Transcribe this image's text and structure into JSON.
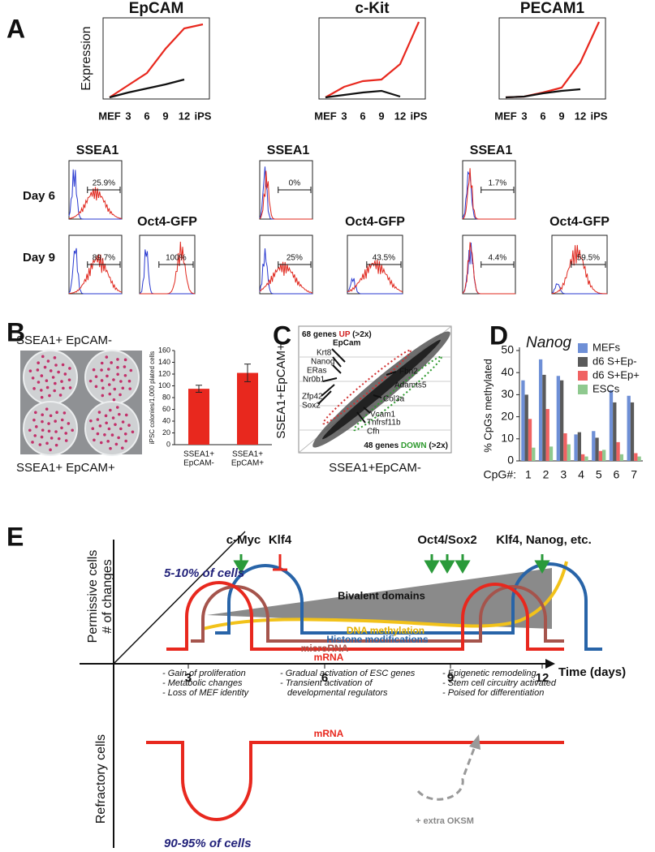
{
  "panel_labels": [
    "A",
    "B",
    "C",
    "D",
    "E"
  ],
  "chart_data": [
    {
      "type": "line",
      "title": "EpCAM",
      "y_label": "Expression",
      "categories": [
        "MEF",
        "3",
        "6",
        "9",
        "12",
        "iPS"
      ],
      "ylim": [
        0,
        100
      ],
      "series": [
        {
          "color": "#e8281e",
          "values": [
            2,
            17,
            32,
            62,
            87,
            92
          ]
        },
        {
          "color": "#111111",
          "values": [
            2,
            8,
            13,
            18,
            24,
            null
          ]
        }
      ]
    },
    {
      "type": "line",
      "title": "c-Kit",
      "categories": [
        "MEF",
        "3",
        "6",
        "9",
        "12",
        "iPS"
      ],
      "ylim": [
        0,
        100
      ],
      "series": [
        {
          "color": "#e8281e",
          "values": [
            2,
            15,
            22,
            24,
            43,
            95
          ]
        },
        {
          "color": "#111111",
          "values": [
            2,
            5,
            8,
            10,
            3,
            null
          ]
        }
      ]
    },
    {
      "type": "line",
      "title": "PECAM1",
      "categories": [
        "MEF",
        "3",
        "6",
        "9",
        "12",
        "iPS"
      ],
      "ylim": [
        0,
        100
      ],
      "series": [
        {
          "color": "#e8281e",
          "values": [
            2,
            3,
            8,
            14,
            45,
            95
          ]
        },
        {
          "color": "#111111",
          "values": [
            2,
            3,
            7,
            10,
            12,
            null
          ]
        }
      ]
    },
    {
      "type": "bar",
      "y_label": "iPSC colonies/1,000 plated cells",
      "categories": [
        [
          "SSEA1+",
          "EpCAM-"
        ],
        [
          "SSEA1+",
          "EpCAM+"
        ]
      ],
      "values": [
        95,
        122
      ],
      "errors": [
        6,
        15
      ],
      "color": "#e8281e",
      "ylim": [
        0,
        160
      ],
      "yticks": [
        0,
        20,
        40,
        60,
        80,
        100,
        120,
        140,
        160
      ]
    },
    {
      "type": "grouped_bar",
      "title": "Nanog",
      "y_label": "% CpGs methylated",
      "x_label": "CpG#:",
      "categories": [
        "1",
        "2",
        "3",
        "4",
        "5",
        "6",
        "7"
      ],
      "ylim": [
        0,
        50
      ],
      "yticks": [
        0,
        10,
        20,
        30,
        40,
        50
      ],
      "series": [
        {
          "name": "MEFs",
          "color": "#6e8fd6",
          "values": [
            36.5,
            46,
            38.5,
            12,
            13.5,
            32,
            29.5
          ]
        },
        {
          "name": "d6 S+Ep-",
          "color": "#5a5a5a",
          "values": [
            30,
            39,
            36.5,
            13,
            10.5,
            26.5,
            26.5
          ]
        },
        {
          "name": "d6 S+Ep+",
          "color": "#f06262",
          "values": [
            19,
            23.5,
            12.5,
            3,
            4.5,
            8.5,
            3.5
          ]
        },
        {
          "name": "ESCs",
          "color": "#8fc98f",
          "values": [
            6,
            6.5,
            7.5,
            2,
            5,
            3,
            2
          ]
        }
      ]
    }
  ],
  "flow": {
    "days": [
      "Day 6",
      "Day 9"
    ],
    "groups": [
      {
        "ssea1_title": "SSEA1",
        "day6_gate": "25.9%",
        "day9_gate": "89.7%",
        "oct4_title": "Oct4-GFP",
        "oct4_gate": "100%"
      },
      {
        "ssea1_title": "SSEA1",
        "day6_gate": "0%",
        "day9_gate": "25%",
        "oct4_title": "Oct4-GFP",
        "oct4_gate": "43.5%"
      },
      {
        "ssea1_title": "SSEA1",
        "day6_gate": "1.7%",
        "day9_gate": "4.4%",
        "oct4_title": "Oct4-GFP",
        "oct4_gate": "59.5%"
      }
    ]
  },
  "panel_b": {
    "photo_top": "SSEA1+ EpCAM-",
    "photo_bottom": "SSEA1+ EpCAM+"
  },
  "panel_c": {
    "up": {
      "count": "68 genes",
      "direction": "UP",
      "threshold": "(>2x)"
    },
    "down": {
      "count": "48 genes",
      "direction": "DOWN",
      "threshold": "(>2x)"
    },
    "y_label": "SSEA1+EpCAM+",
    "x_label": "SSEA1+EpCAM-",
    "up_genes": [
      "EpCam",
      "Krt8",
      "Nanog",
      "ERas",
      "Nr0b1",
      "Zfp42",
      "Sox2"
    ],
    "down_genes": [
      "Fbn2",
      "Adamts5",
      "Col3a",
      "Vcam1",
      "Tnfrsf11b",
      "Cfh"
    ]
  },
  "panel_e": {
    "factors": {
      "c_myc": "c-Myc",
      "klf4": "Klf4",
      "oct4_sox2": "Oct4/Sox2",
      "late": "Klf4, Nanog, etc."
    },
    "permissive_fraction": "5-10% of cells",
    "refractory_fraction": "90-95% of cells",
    "curves": {
      "bivalent": "Bivalent domains",
      "dna_methylation": "DNA methylation",
      "histone": "Histone modifications",
      "microrna": "microRNA",
      "mrna": "mRNA"
    },
    "notes": [
      [
        "- Gain of proliferation",
        "- Metabolic changes",
        "- Loss of MEF identity"
      ],
      [
        "- Gradual activation of ESC genes",
        "- Transient activation of",
        "developmental regulators"
      ],
      [
        "- Epigenetic remodeling",
        "- Stem cell circuitry activated",
        "- Poised for differentiation"
      ]
    ],
    "time_ticks": [
      "3",
      "6",
      "9",
      "12"
    ],
    "time_label": "Time (days)",
    "y_label_top": "Permissive cells",
    "y_label_changes": "# of changes",
    "y_label_bottom": "Refractory cells",
    "refractory_mrna": "mRNA",
    "extra": "+ extra OKSM"
  }
}
